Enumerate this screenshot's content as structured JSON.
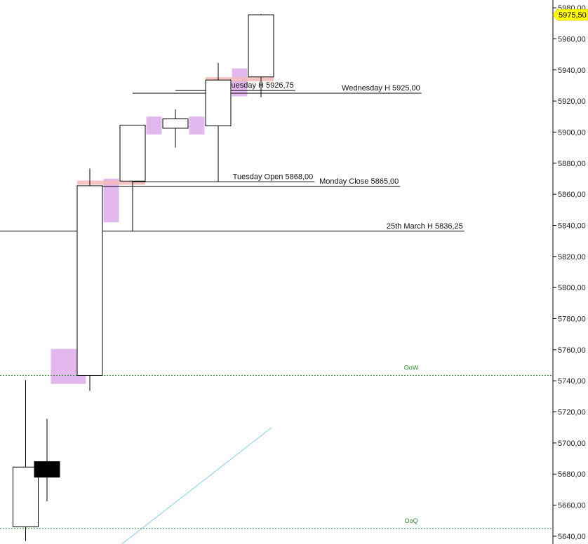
{
  "chart_data": {
    "type": "candlestick",
    "ylim": [
      5635,
      5985
    ],
    "y_ticks": [
      {
        "value": 5640,
        "label": "5640,00"
      },
      {
        "value": 5660,
        "label": "5660,00"
      },
      {
        "value": 5680,
        "label": "5680,00"
      },
      {
        "value": 5700,
        "label": "5700,00"
      },
      {
        "value": 5720,
        "label": "5720,00"
      },
      {
        "value": 5740,
        "label": "5740,00"
      },
      {
        "value": 5760,
        "label": "5760,00"
      },
      {
        "value": 5780,
        "label": "5780,00"
      },
      {
        "value": 5800,
        "label": "5800,00"
      },
      {
        "value": 5820,
        "label": "5820,00"
      },
      {
        "value": 5840,
        "label": "5840,00"
      },
      {
        "value": 5860,
        "label": "5860,00"
      },
      {
        "value": 5880,
        "label": "5880,00"
      },
      {
        "value": 5900,
        "label": "5900,00"
      },
      {
        "value": 5920,
        "label": "5920,00"
      },
      {
        "value": 5940,
        "label": "5940,00"
      },
      {
        "value": 5960,
        "label": "5960,00"
      },
      {
        "value": 5980,
        "label": "5980,00"
      }
    ],
    "current_price": {
      "value": 5975.5,
      "label": "5975,50",
      "color": "#ffff00"
    },
    "candles": [
      {
        "index": 0,
        "open": 5646,
        "high": 5740.5,
        "low": 5637,
        "close": 5684.5
      },
      {
        "index": 1,
        "open": 5688,
        "high": 5715.5,
        "low": 5662.5,
        "close": 5678
      },
      {
        "index": 3,
        "open": 5743.5,
        "high": 5876.5,
        "low": 5733.5,
        "close": 5865.5
      },
      {
        "index": 5,
        "open": 5868.5,
        "high": 5904.5,
        "low": 5836,
        "close": 5904.5
      },
      {
        "index": 7,
        "open": 5902.5,
        "high": 5914.5,
        "low": 5890,
        "close": 5908.5
      },
      {
        "index": 9,
        "open": 5904,
        "high": 5944.5,
        "low": 5868,
        "close": 5933.5
      },
      {
        "index": 11,
        "open": 5935.5,
        "high": 5976,
        "low": 5922.5,
        "close": 5975.5
      }
    ],
    "shaded_boxes": [
      {
        "index": 2,
        "low": 5738,
        "high": 5760.5,
        "color": "#e3b8ee"
      },
      {
        "index": 4,
        "low": 5842,
        "high": 5870,
        "color": "#e3b8ee"
      },
      {
        "index": 6,
        "low": 5898.5,
        "high": 5910,
        "color": "#e3b8ee"
      },
      {
        "index": 8,
        "low": 5898.5,
        "high": 5910,
        "color": "#e3b8ee"
      },
      {
        "index": 10,
        "low": 5923,
        "high": 5941,
        "color": "#e3b8ee"
      }
    ],
    "highlight_bands": [
      {
        "from_index": 3,
        "to_index": 5,
        "value": 5867.5,
        "color": "#f4b8b8"
      },
      {
        "from_index": 9,
        "to_index": 11,
        "value": 5934,
        "color": "#f4b8b8"
      }
    ],
    "levels": [
      {
        "label": "Tuesday H 5926,75",
        "value": 5926.75,
        "from_index": 7,
        "to_index": 12.6
      },
      {
        "label": "Wednesday H 5925,00",
        "value": 5925.0,
        "from_index": 5,
        "to_index": 18.5
      },
      {
        "label": "Tuesday Open 5868,00",
        "value": 5868.0,
        "from_index": 5,
        "to_index": 13.5
      },
      {
        "label": "Monday Close 5865,00",
        "value": 5865.0,
        "from_index": 3,
        "to_index": 17.5
      },
      {
        "label": "25th March H 5836,25",
        "value": 5836.25,
        "from_index": -1,
        "to_index": 20.5
      }
    ],
    "green_lines": [
      {
        "label": "OoW",
        "value": 5743.5,
        "color": "#2e8b2e"
      },
      {
        "label": "OoQ",
        "value": 5645,
        "color": "#2e8b2e"
      }
    ],
    "trendline": {
      "from": {
        "index": 4.5,
        "value": 5635
      },
      "to": {
        "index": 11.5,
        "value": 5710
      },
      "color": "#87ceeb"
    }
  }
}
